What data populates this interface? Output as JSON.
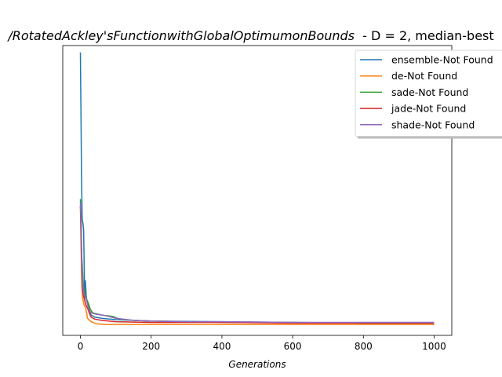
{
  "chart_data": {
    "type": "line",
    "title_math": "/RotatedAckley'sFunctionwithGlobalOptimumonBounds",
    "title_rest": "  - D = 2, median-best",
    "xlabel": "Generations",
    "ylabel": "",
    "xlim": [
      -50,
      1050
    ],
    "ylim": [
      -5,
      420
    ],
    "xticks": [
      0,
      200,
      400,
      600,
      800,
      1000
    ],
    "yticks_visible": false,
    "grid": false,
    "legend_position": "top-right",
    "series": [
      {
        "name": "ensemble-Not Found",
        "color": "#1f77b4",
        "points": [
          [
            0,
            410
          ],
          [
            2,
            300
          ],
          [
            3,
            230
          ],
          [
            5,
            165
          ],
          [
            7,
            160
          ],
          [
            9,
            150
          ],
          [
            10,
            115
          ],
          [
            12,
            50
          ],
          [
            14,
            75
          ],
          [
            16,
            55
          ],
          [
            18,
            45
          ],
          [
            22,
            40
          ],
          [
            26,
            30
          ],
          [
            30,
            25
          ],
          [
            40,
            22
          ],
          [
            60,
            20
          ],
          [
            100,
            18
          ],
          [
            200,
            16
          ],
          [
            400,
            15
          ],
          [
            600,
            14
          ],
          [
            800,
            13
          ],
          [
            1000,
            13
          ]
        ]
      },
      {
        "name": "de-Not Found",
        "color": "#ff7f0e",
        "points": [
          [
            0,
            185
          ],
          [
            2,
            120
          ],
          [
            4,
            70
          ],
          [
            6,
            50
          ],
          [
            10,
            40
          ],
          [
            15,
            35
          ],
          [
            20,
            20
          ],
          [
            30,
            15
          ],
          [
            45,
            12
          ],
          [
            70,
            11
          ],
          [
            100,
            11
          ],
          [
            200,
            11
          ],
          [
            400,
            11
          ],
          [
            600,
            11
          ],
          [
            800,
            11
          ],
          [
            1000,
            11
          ]
        ]
      },
      {
        "name": "sade-Not Found",
        "color": "#2ca02c",
        "points": [
          [
            0,
            195
          ],
          [
            2,
            170
          ],
          [
            4,
            110
          ],
          [
            6,
            90
          ],
          [
            8,
            70
          ],
          [
            12,
            55
          ],
          [
            16,
            50
          ],
          [
            20,
            45
          ],
          [
            24,
            40
          ],
          [
            28,
            33
          ],
          [
            35,
            28
          ],
          [
            50,
            26
          ],
          [
            70,
            24
          ],
          [
            90,
            23
          ],
          [
            110,
            19
          ],
          [
            150,
            17
          ],
          [
            200,
            16
          ],
          [
            300,
            15
          ],
          [
            400,
            14
          ],
          [
            600,
            14
          ],
          [
            800,
            13
          ],
          [
            1000,
            13
          ]
        ]
      },
      {
        "name": "jade-Not Found",
        "color": "#d62728",
        "points": [
          [
            0,
            185
          ],
          [
            2,
            140
          ],
          [
            4,
            85
          ],
          [
            6,
            60
          ],
          [
            10,
            50
          ],
          [
            15,
            40
          ],
          [
            20,
            35
          ],
          [
            25,
            28
          ],
          [
            30,
            22
          ],
          [
            40,
            19
          ],
          [
            60,
            17
          ],
          [
            100,
            15
          ],
          [
            200,
            14
          ],
          [
            400,
            14
          ],
          [
            600,
            13
          ],
          [
            800,
            13
          ],
          [
            1000,
            13
          ]
        ]
      },
      {
        "name": "shade-Not Found",
        "color": "#9467bd",
        "points": [
          [
            0,
            190
          ],
          [
            2,
            155
          ],
          [
            4,
            100
          ],
          [
            6,
            70
          ],
          [
            10,
            55
          ],
          [
            15,
            50
          ],
          [
            20,
            40
          ],
          [
            25,
            32
          ],
          [
            30,
            28
          ],
          [
            45,
            26
          ],
          [
            70,
            24
          ],
          [
            100,
            20
          ],
          [
            150,
            17
          ],
          [
            200,
            16
          ],
          [
            300,
            15
          ],
          [
            400,
            15
          ],
          [
            600,
            14
          ],
          [
            800,
            14
          ],
          [
            1000,
            14
          ]
        ]
      }
    ]
  }
}
